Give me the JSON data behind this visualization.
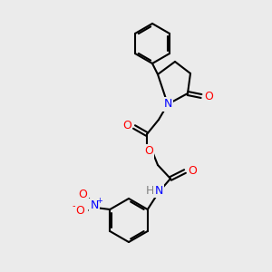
{
  "background_color": "#ebebeb",
  "bond_color": "#000000",
  "atom_colors": {
    "N": "#0000ff",
    "O": "#ff0000",
    "H": "#808080",
    "N+": "#0000ff",
    "O-": "#ff0000"
  },
  "figsize": [
    3.0,
    3.0
  ],
  "dpi": 100
}
